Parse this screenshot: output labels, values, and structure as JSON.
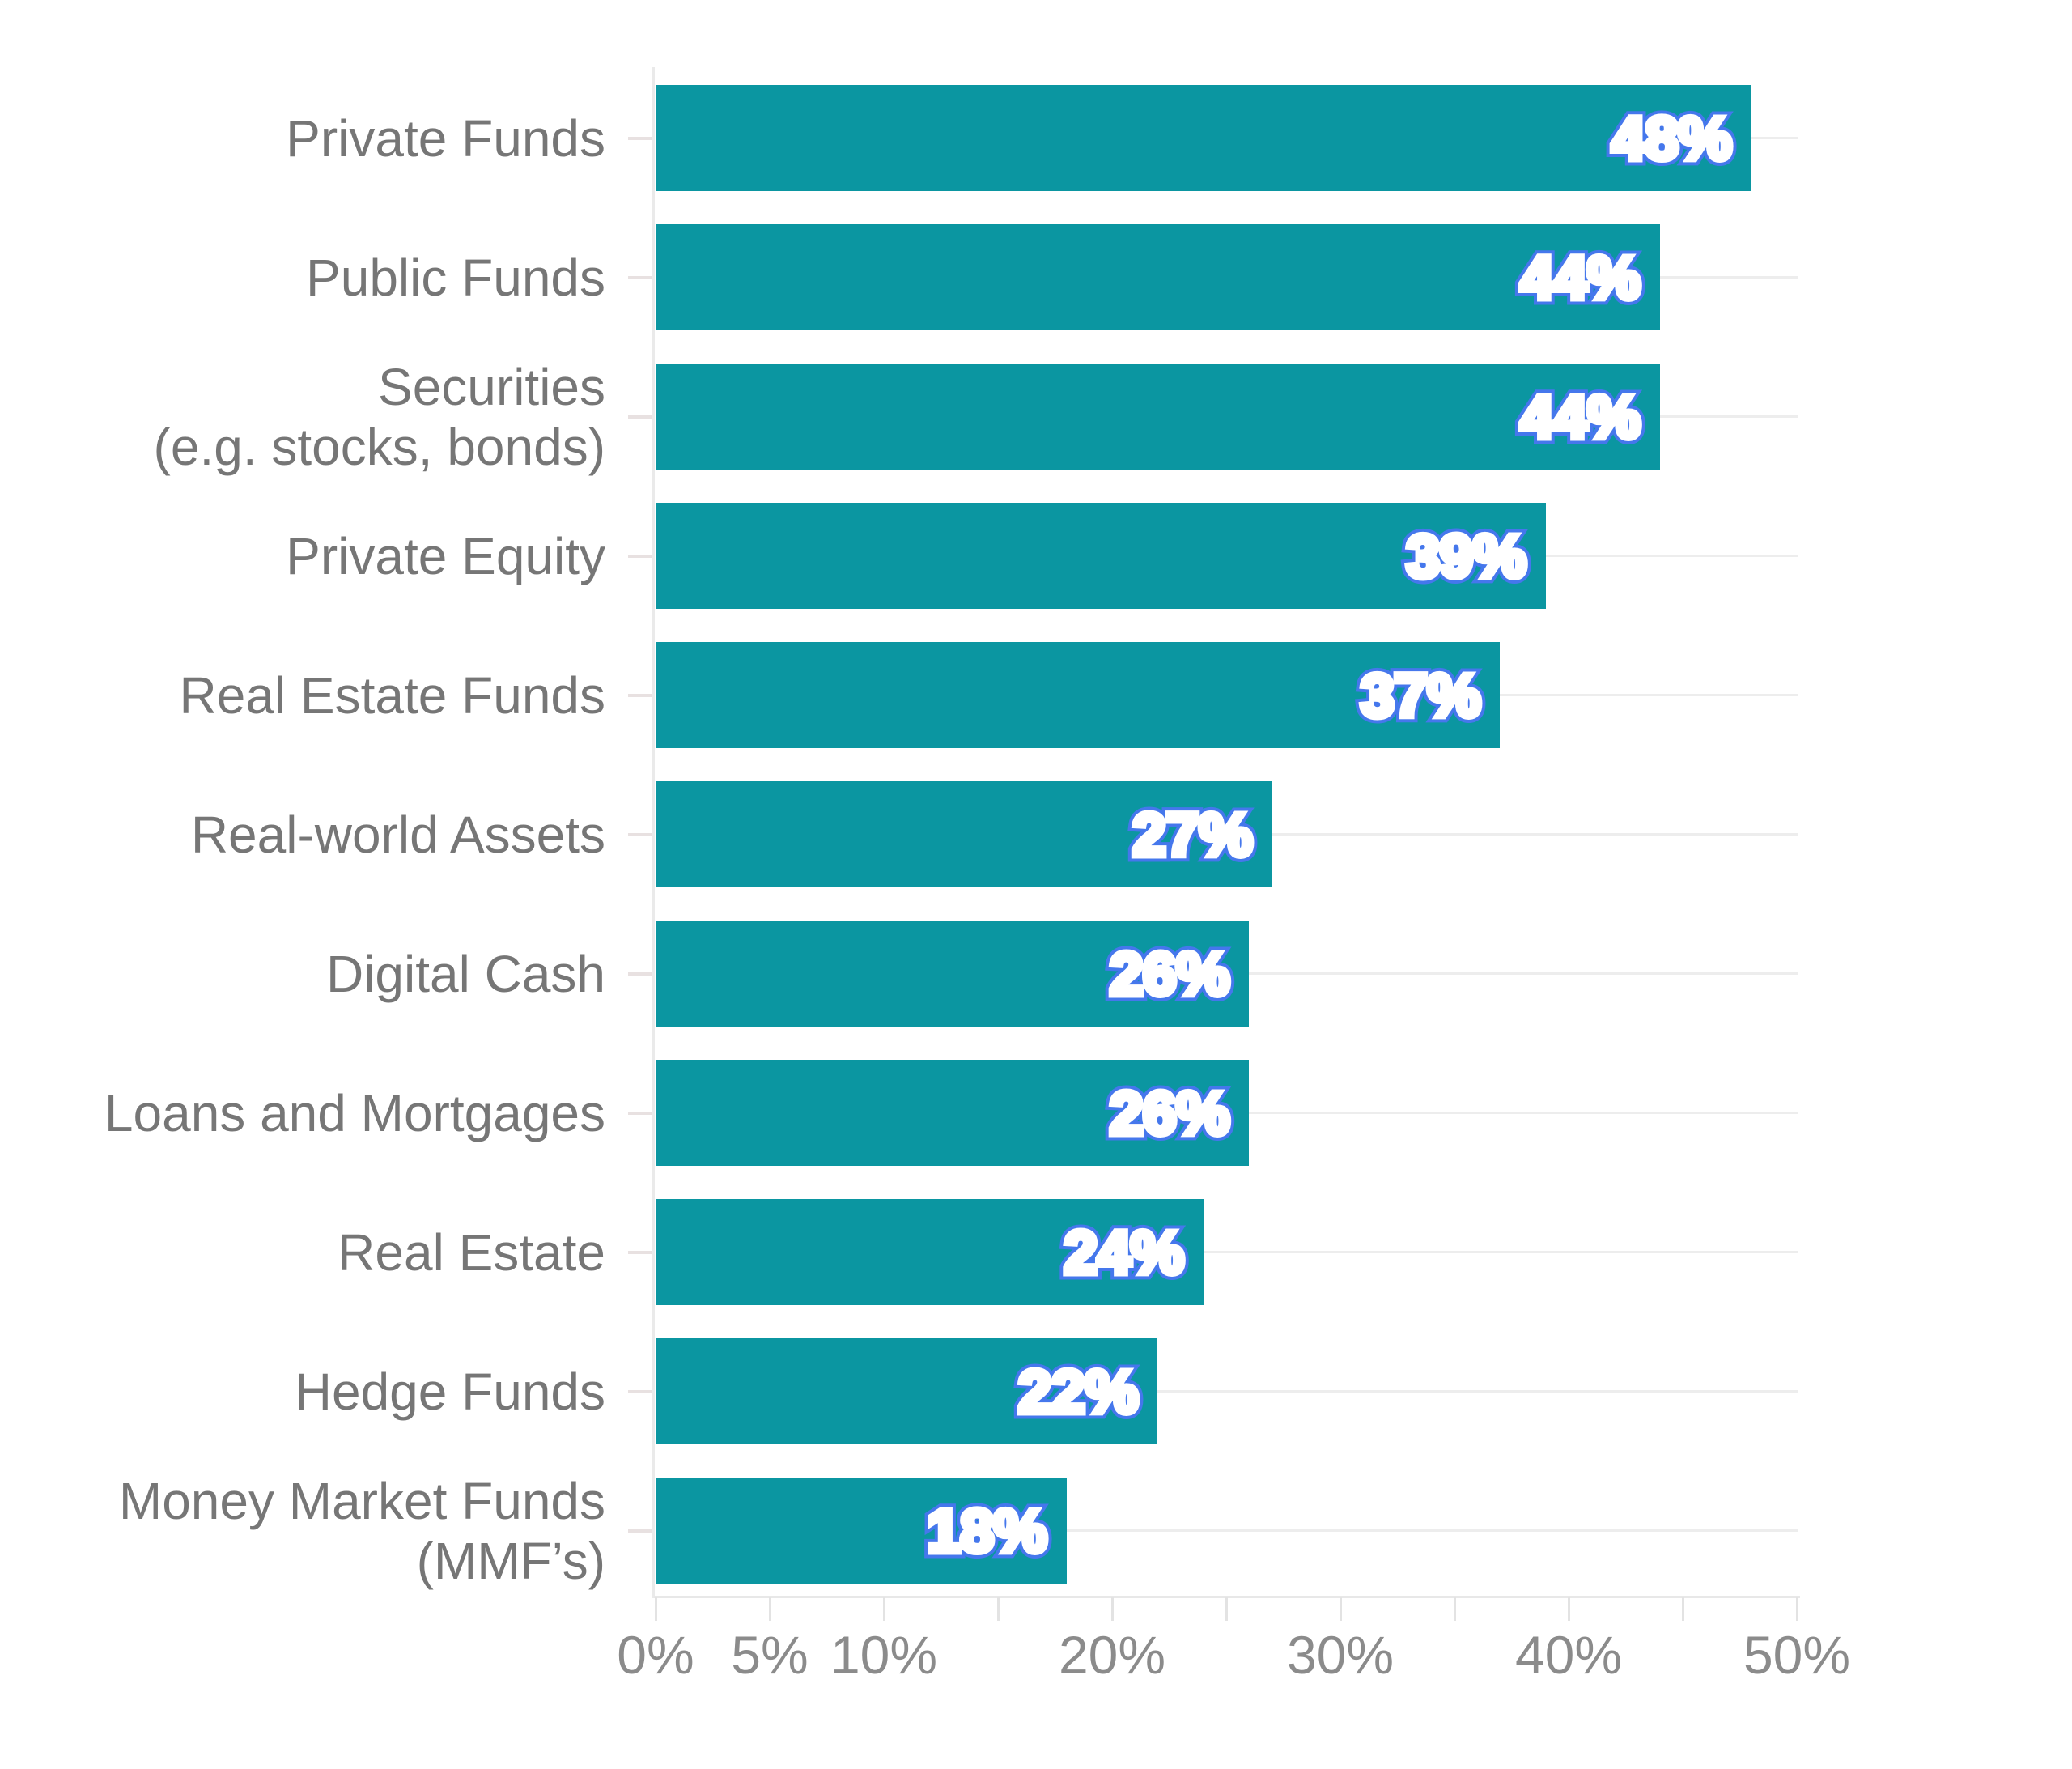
{
  "chart_data": {
    "type": "bar",
    "orientation": "horizontal",
    "title": "",
    "xlabel": "",
    "ylabel": "",
    "xlim": [
      0,
      50
    ],
    "grid": "horizontal-row-gridlines",
    "legend": "none",
    "categories": [
      "Private Funds",
      "Public Funds",
      "Securities\n(e.g. stocks, bonds)",
      "Private Equity",
      "Real Estate Funds",
      "Real-world Assets",
      "Digital Cash",
      "Loans and Mortgages",
      "Real Estate",
      "Hedge Funds",
      "Money Market Funds\n(MMF’s)"
    ],
    "values": [
      48,
      44,
      44,
      39,
      37,
      27,
      26,
      26,
      24,
      22,
      18
    ],
    "value_labels": [
      "48%",
      "44%",
      "44%",
      "39%",
      "37%",
      "27%",
      "26%",
      "26%",
      "24%",
      "22%",
      "18%"
    ],
    "x_axis": {
      "ticks": [
        {
          "pct": 0,
          "label": "0%"
        },
        {
          "pct": 5,
          "label": "5%"
        },
        {
          "pct": 10,
          "label": "10%"
        },
        {
          "pct": 15,
          "label": ""
        },
        {
          "pct": 20,
          "label": "20%"
        },
        {
          "pct": 25,
          "label": ""
        },
        {
          "pct": 30,
          "label": "30%"
        },
        {
          "pct": 35,
          "label": ""
        },
        {
          "pct": 40,
          "label": "40%"
        },
        {
          "pct": 45,
          "label": ""
        },
        {
          "pct": 50,
          "label": "50%"
        }
      ]
    },
    "colors": {
      "bar": "#0B96A1",
      "value_text_counter": "#4577EC",
      "value_text": "#FFFFFF",
      "category_label": "#767676",
      "tick_label": "#8B8B8B",
      "gridline": "#EDEDED",
      "axis_line": "#EAEAEA"
    }
  }
}
